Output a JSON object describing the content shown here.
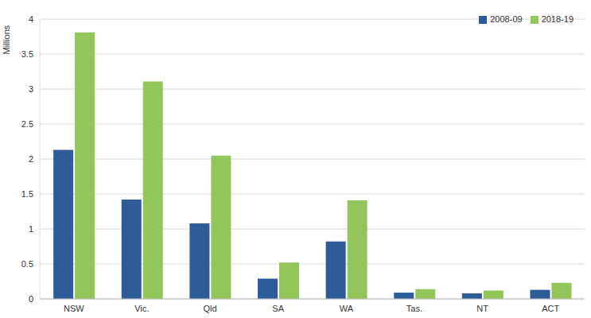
{
  "chart_data": {
    "type": "bar",
    "y_label": "Millions",
    "categories": [
      "NSW",
      "Vic.",
      "Qld",
      "SA",
      "WA",
      "Tas.",
      "NT",
      "ACT"
    ],
    "series": [
      {
        "name": "2008-09",
        "color": "#2e5c99",
        "values": [
          2.13,
          1.42,
          1.08,
          0.29,
          0.82,
          0.09,
          0.08,
          0.13
        ]
      },
      {
        "name": "2018-19",
        "color": "#92c65a",
        "values": [
          3.81,
          3.11,
          2.05,
          0.52,
          1.41,
          0.14,
          0.12,
          0.23
        ]
      }
    ],
    "ylim": [
      0,
      4
    ],
    "yticks": [
      0,
      0.5,
      1,
      1.5,
      2,
      2.5,
      3,
      3.5,
      4
    ],
    "grid": true,
    "legend": "upper right"
  }
}
